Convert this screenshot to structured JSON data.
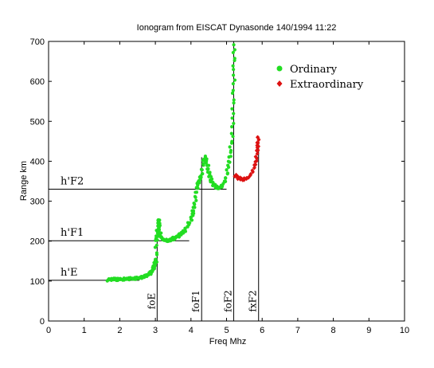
{
  "chart_data": {
    "type": "scatter",
    "title": "Ionogram from EISCAT Dynasonde 140/1994 11:22",
    "xlabel": "Freq Mhz",
    "ylabel": "Range km",
    "xlim": [
      0,
      10
    ],
    "ylim": [
      0,
      700
    ],
    "xticks": [
      0,
      1,
      2,
      3,
      4,
      5,
      6,
      7,
      8,
      9,
      10
    ],
    "yticks": [
      0,
      100,
      200,
      300,
      400,
      500,
      600,
      700
    ],
    "grid": false,
    "legend_position": "top-right",
    "series": [
      {
        "name": "Ordinary",
        "color": "#22dd22",
        "marker": "circle",
        "points": [
          [
            1.65,
            103
          ],
          [
            1.75,
            104
          ],
          [
            1.85,
            105
          ],
          [
            1.95,
            104
          ],
          [
            2.05,
            105
          ],
          [
            2.15,
            105
          ],
          [
            2.25,
            106
          ],
          [
            2.35,
            106
          ],
          [
            2.45,
            107
          ],
          [
            2.55,
            108
          ],
          [
            2.65,
            110
          ],
          [
            2.72,
            112
          ],
          [
            2.8,
            116
          ],
          [
            2.86,
            120
          ],
          [
            2.92,
            128
          ],
          [
            2.96,
            136
          ],
          [
            3.0,
            145
          ],
          [
            3.03,
            155
          ],
          [
            3.02,
            200
          ],
          [
            3.05,
            218
          ],
          [
            3.08,
            235
          ],
          [
            3.1,
            255
          ],
          [
            3.12,
            230
          ],
          [
            3.15,
            212
          ],
          [
            3.2,
            205
          ],
          [
            3.3,
            201
          ],
          [
            3.4,
            203
          ],
          [
            3.5,
            206
          ],
          [
            3.6,
            210
          ],
          [
            3.7,
            216
          ],
          [
            3.8,
            224
          ],
          [
            3.9,
            238
          ],
          [
            4.0,
            255
          ],
          [
            4.05,
            270
          ],
          [
            4.1,
            290
          ],
          [
            4.15,
            320
          ],
          [
            4.2,
            345
          ],
          [
            4.25,
            355
          ],
          [
            4.3,
            370
          ],
          [
            4.35,
            400
          ],
          [
            4.4,
            410
          ],
          [
            4.45,
            395
          ],
          [
            4.5,
            375
          ],
          [
            4.55,
            355
          ],
          [
            4.6,
            345
          ],
          [
            4.7,
            335
          ],
          [
            4.8,
            333
          ],
          [
            4.9,
            340
          ],
          [
            5.0,
            360
          ],
          [
            5.05,
            390
          ],
          [
            5.1,
            420
          ],
          [
            5.15,
            460
          ],
          [
            5.18,
            520
          ],
          [
            5.2,
            580
          ],
          [
            5.21,
            640
          ],
          [
            5.22,
            690
          ]
        ]
      },
      {
        "name": "Extraordinary",
        "color": "#dd1111",
        "marker": "diamond",
        "points": [
          [
            5.23,
            365
          ],
          [
            5.3,
            360
          ],
          [
            5.4,
            355
          ],
          [
            5.5,
            355
          ],
          [
            5.6,
            358
          ],
          [
            5.7,
            368
          ],
          [
            5.78,
            385
          ],
          [
            5.83,
            405
          ],
          [
            5.86,
            425
          ],
          [
            5.88,
            445
          ],
          [
            5.9,
            462
          ]
        ]
      }
    ],
    "annotations": {
      "horizontal": [
        {
          "label": "h'E",
          "y": 102,
          "x_end": 2.55
        },
        {
          "label": "h'F1",
          "y": 201,
          "x_end": 3.95
        },
        {
          "label": "h'F2",
          "y": 330,
          "x_end": 5.0
        }
      ],
      "vertical": [
        {
          "label": "foE",
          "x": 3.05,
          "y_top": 200
        },
        {
          "label": "foF1",
          "x": 4.3,
          "y_top": 410
        },
        {
          "label": "foF2",
          "x": 5.2,
          "y_top": 700
        },
        {
          "label": "fxF2",
          "x": 5.9,
          "y_top": 462
        }
      ]
    }
  }
}
